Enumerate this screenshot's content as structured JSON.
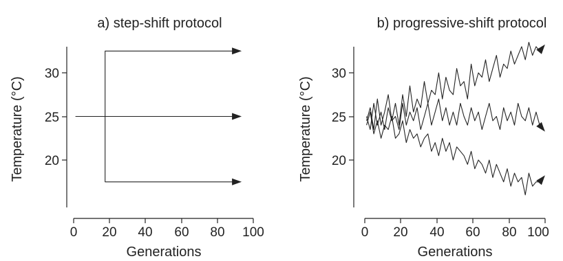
{
  "chart_data": [
    {
      "type": "line",
      "title": "a) step-shift protocol",
      "xlabel": "Generations",
      "ylabel": "Temperature (°C)",
      "xlim": [
        -3,
        100
      ],
      "ylim": [
        15,
        33
      ],
      "xticks": [
        0,
        20,
        40,
        60,
        80,
        100
      ],
      "yticks": [
        20,
        25,
        30
      ],
      "series": [
        {
          "x": [
            1,
            92
          ],
          "y": [
            25,
            25
          ]
        },
        {
          "x": [
            17.5,
            17.5,
            92
          ],
          "y": [
            25,
            32.5,
            32.5
          ]
        },
        {
          "x": [
            17.5,
            17.5,
            92
          ],
          "y": [
            25,
            17.5,
            17.5
          ]
        }
      ]
    },
    {
      "type": "line",
      "title": "b) progressive-shift protocol",
      "xlabel": "Generations",
      "ylabel": "Temperature (°C)",
      "xlim": [
        -3,
        100
      ],
      "ylim": [
        15,
        33
      ],
      "xticks": [
        0,
        20,
        40,
        60,
        80,
        100
      ],
      "yticks": [
        20,
        25,
        30
      ],
      "series": [
        {
          "x": [
            1,
            3,
            5,
            7,
            9,
            11,
            13,
            15,
            17,
            19,
            21,
            23,
            25,
            27,
            29,
            31,
            33,
            35,
            37,
            39,
            41,
            43,
            45,
            47,
            49,
            51,
            53,
            55,
            57,
            59,
            61,
            63,
            65,
            67,
            69,
            71,
            73,
            75,
            77,
            79,
            81,
            83,
            85,
            87,
            89,
            91,
            93,
            95,
            97,
            99
          ],
          "y": [
            24.5,
            26.0,
            23.5,
            27.0,
            24.0,
            25.5,
            27.5,
            24.5,
            26.5,
            24.0,
            27.5,
            25.0,
            28.5,
            25.5,
            27.0,
            26.0,
            29.0,
            26.5,
            28.0,
            27.5,
            30.0,
            27.0,
            29.5,
            28.0,
            27.5,
            30.5,
            28.5,
            29.0,
            27.0,
            31.0,
            28.5,
            30.0,
            29.5,
            31.5,
            29.0,
            30.5,
            32.0,
            29.5,
            31.0,
            30.5,
            32.5,
            31.0,
            32.0,
            33.0,
            31.5,
            33.5,
            32.0,
            33.0,
            32.5,
            33.0
          ]
        },
        {
          "x": [
            1,
            3,
            5,
            7,
            9,
            11,
            13,
            15,
            17,
            19,
            21,
            23,
            25,
            27,
            29,
            31,
            33,
            35,
            37,
            39,
            41,
            43,
            45,
            47,
            49,
            51,
            53,
            55,
            57,
            59,
            61,
            63,
            65,
            67,
            69,
            71,
            73,
            75,
            77,
            79,
            81,
            83,
            85,
            87,
            89,
            91,
            93,
            95,
            97,
            99
          ],
          "y": [
            25.0,
            23.5,
            26.5,
            24.0,
            25.5,
            23.5,
            26.0,
            24.5,
            25.0,
            23.5,
            26.5,
            24.0,
            25.5,
            24.5,
            26.0,
            23.5,
            25.0,
            26.5,
            24.0,
            25.5,
            27.0,
            24.5,
            26.0,
            24.0,
            25.5,
            24.0,
            26.5,
            25.0,
            24.0,
            26.0,
            24.5,
            25.5,
            23.5,
            25.0,
            26.5,
            24.5,
            25.0,
            23.5,
            26.0,
            24.5,
            25.5,
            24.0,
            26.5,
            25.0,
            24.5,
            26.0,
            24.0,
            25.5,
            24.0,
            23.5
          ]
        },
        {
          "x": [
            1,
            3,
            5,
            7,
            9,
            11,
            13,
            15,
            17,
            19,
            21,
            23,
            25,
            27,
            29,
            31,
            33,
            35,
            37,
            39,
            41,
            43,
            45,
            47,
            49,
            51,
            53,
            55,
            57,
            59,
            61,
            63,
            65,
            67,
            69,
            71,
            73,
            75,
            77,
            79,
            81,
            83,
            85,
            87,
            89,
            91,
            93,
            95,
            97,
            99
          ],
          "y": [
            24.0,
            25.5,
            23.0,
            24.5,
            22.5,
            24.0,
            23.5,
            25.0,
            22.5,
            23.0,
            24.5,
            22.0,
            23.5,
            22.5,
            23.0,
            21.5,
            22.5,
            23.0,
            21.0,
            22.0,
            20.5,
            22.5,
            21.0,
            22.0,
            20.0,
            21.5,
            21.0,
            20.5,
            19.5,
            21.0,
            19.0,
            20.0,
            19.5,
            18.5,
            20.0,
            18.0,
            19.5,
            18.5,
            17.5,
            19.0,
            17.0,
            18.5,
            17.5,
            18.0,
            16.0,
            18.5,
            17.0,
            17.5,
            17.5,
            18.0
          ]
        }
      ]
    }
  ]
}
